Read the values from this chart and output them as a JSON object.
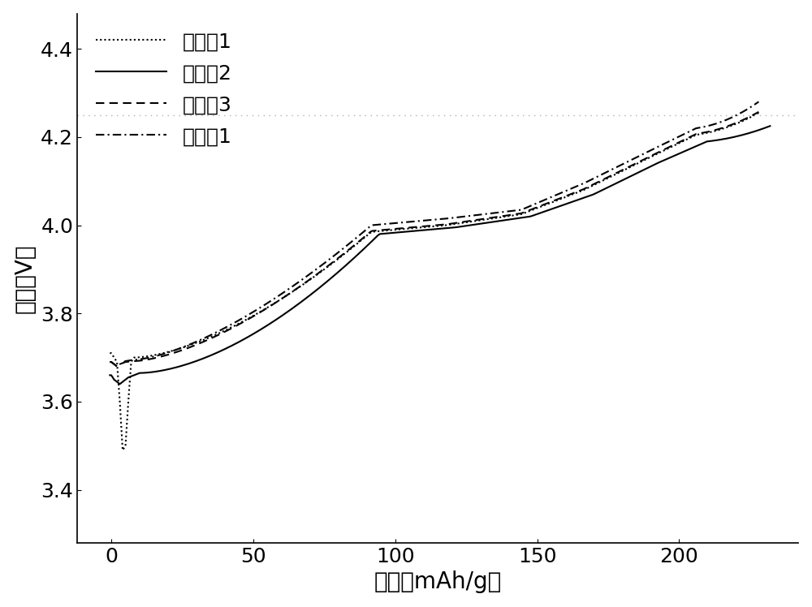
{
  "xlabel": "容量（mAh/g）",
  "ylabel": "电压（V）",
  "xlim": [
    -12,
    242
  ],
  "ylim": [
    3.28,
    4.48
  ],
  "yticks": [
    3.4,
    3.6,
    3.8,
    4.0,
    4.2,
    4.4
  ],
  "xticks": [
    0,
    50,
    100,
    150,
    200
  ],
  "hline_y": 4.25,
  "hline_color": "#b0b0b0",
  "legend_labels": [
    "比较例1",
    "比较例2",
    "比较例3",
    "实施例1"
  ],
  "legend_styles": [
    "dotted",
    "solid",
    "dashed",
    "dashdot"
  ],
  "line_color": "#000000",
  "font_size": 18,
  "label_font_size": 20,
  "lw": 1.5
}
